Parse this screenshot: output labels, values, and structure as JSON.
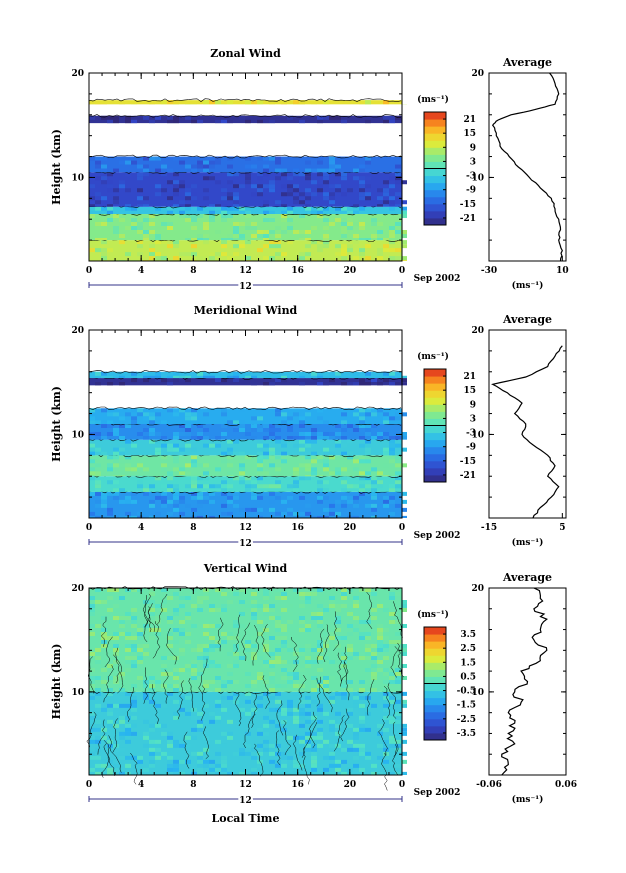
{
  "figure": {
    "date_label": "Sep 2002",
    "day_label": "12",
    "xlabel": "Local Time"
  },
  "chart_data": [
    {
      "type": "heatmap",
      "title": "Zonal Wind",
      "ylabel": "Height (km)",
      "ylim": [
        2,
        20
      ],
      "yticks": [
        "20",
        "10"
      ],
      "xlim": [
        0,
        24
      ],
      "xticks": [
        "0",
        "4",
        "8",
        "12",
        "16",
        "20",
        "0"
      ],
      "colorbar": {
        "unit": "(ms⁻¹)",
        "ticks": [
          "21",
          "15",
          "9",
          "3",
          "-3",
          "-9",
          "-15",
          "-21"
        ],
        "range": [
          -24,
          24
        ]
      },
      "layers": [
        {
          "z": [
            2,
            4
          ],
          "value": 9
        },
        {
          "z": [
            4,
            6.5
          ],
          "value": 5
        },
        {
          "z": [
            6.5,
            7.2
          ],
          "value": -4
        },
        {
          "z": [
            7.2,
            10.5
          ],
          "value": -18
        },
        {
          "z": [
            10.5,
            12
          ],
          "value": -13
        },
        {
          "z": [
            15.2,
            15.9
          ],
          "value": -22
        },
        {
          "z": [
            17,
            17.4
          ],
          "value": 12
        }
      ],
      "profile": {
        "title": "Average",
        "xlim": [
          -30,
          12
        ],
        "xticks": [
          "-30",
          "10"
        ],
        "yticks": [
          "20",
          "10"
        ],
        "xunit": "(ms⁻¹)",
        "z": [
          2,
          3,
          4,
          5,
          6,
          7,
          8,
          9,
          10,
          11,
          12,
          13,
          14,
          15,
          15.5,
          16,
          16.5,
          17,
          18,
          19,
          20
        ],
        "u": [
          9,
          10,
          8,
          9,
          8,
          6,
          4,
          -2,
          -8,
          -14,
          -19,
          -24,
          -26,
          -28,
          -25,
          -18,
          -5,
          6,
          8,
          6,
          3
        ]
      }
    },
    {
      "type": "heatmap",
      "title": "Meridional Wind",
      "ylabel": "Height (km)",
      "ylim": [
        2,
        20
      ],
      "yticks": [
        "20",
        "10"
      ],
      "xlim": [
        0,
        24
      ],
      "xticks": [
        "0",
        "4",
        "8",
        "12",
        "16",
        "20",
        "0"
      ],
      "colorbar": {
        "unit": "(ms⁻¹)",
        "ticks": [
          "21",
          "15",
          "9",
          "3",
          "-3",
          "-9",
          "-15",
          "-21"
        ],
        "range": [
          -24,
          24
        ]
      },
      "layers": [
        {
          "z": [
            2,
            4.5
          ],
          "value": -9
        },
        {
          "z": [
            4.5,
            6
          ],
          "value": -1
        },
        {
          "z": [
            6,
            8
          ],
          "value": 3
        },
        {
          "z": [
            8,
            9.5
          ],
          "value": -3
        },
        {
          "z": [
            9.5,
            11
          ],
          "value": -10
        },
        {
          "z": [
            11,
            12.5
          ],
          "value": -7
        },
        {
          "z": [
            14.7,
            15.4
          ],
          "value": -22
        },
        {
          "z": [
            15.4,
            16
          ],
          "value": -5
        }
      ],
      "profile": {
        "title": "Average",
        "xlim": [
          -15,
          6
        ],
        "xticks": [
          "-15",
          "5"
        ],
        "yticks": [
          "20",
          "10"
        ],
        "xunit": "(ms⁻¹)",
        "z": [
          2,
          3,
          4,
          5,
          6,
          7,
          8,
          9,
          10,
          11,
          12,
          13,
          14,
          14.8,
          15.5,
          16.5,
          17.5,
          18.5
        ],
        "v": [
          -3,
          -1,
          2,
          4,
          1,
          3,
          1,
          -3,
          -6,
          -5,
          -8,
          -6,
          -10,
          -14,
          -5,
          1,
          3,
          5
        ]
      }
    },
    {
      "type": "heatmap",
      "title": "Vertical Wind",
      "ylabel": "Height (km)",
      "ylim": [
        2,
        20
      ],
      "yticks": [
        "20",
        "10"
      ],
      "xlim": [
        0,
        24
      ],
      "xticks": [
        "0",
        "4",
        "8",
        "12",
        "16",
        "20",
        "0"
      ],
      "colorbar": {
        "unit": "(ms⁻¹)",
        "ticks": [
          "3.5",
          "2.5",
          "1.5",
          "0.5",
          "-0.5",
          "-1.5",
          "-2.5",
          "-3.5"
        ],
        "range": [
          -4,
          4
        ]
      },
      "layers": [
        {
          "z": [
            2,
            10
          ],
          "value": -0.5
        },
        {
          "z": [
            10,
            20
          ],
          "value": 0.4
        }
      ],
      "profile": {
        "title": "Average",
        "xlim": [
          -0.06,
          0.06
        ],
        "xticks": [
          "-0.06",
          "0.06"
        ],
        "yticks": [
          "20",
          "10"
        ],
        "xunit": "(ms⁻¹)",
        "z": [
          2,
          3,
          4,
          5,
          6,
          7,
          8,
          9,
          10,
          11,
          12,
          13,
          14,
          15,
          16,
          17,
          18,
          19,
          20
        ],
        "w": [
          -0.04,
          -0.03,
          -0.04,
          -0.02,
          -0.03,
          -0.02,
          -0.03,
          -0.01,
          -0.02,
          0.0,
          -0.01,
          0.02,
          0.03,
          0.01,
          0.02,
          0.03,
          0.01,
          0.02,
          0.01
        ]
      }
    }
  ]
}
